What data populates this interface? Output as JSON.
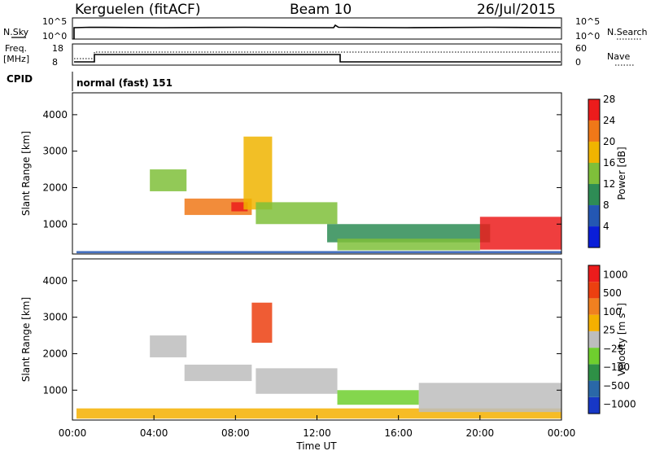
{
  "header": {
    "station": "Kerguelen (fitACF)",
    "beam": "Beam 10",
    "date": "26/Jul/2015"
  },
  "top_panels": {
    "nsky_label": "N.Sky",
    "nsky_ticks": [
      "10^5",
      "10^0"
    ],
    "nsearch_label": "N.Search",
    "nsearch_ticks": [
      "10^5",
      "10^0"
    ],
    "freq_label_1": "Freq.",
    "freq_label_2": "[MHz]",
    "freq_ticks": [
      "18",
      "8"
    ],
    "nave_label": "Nave",
    "nave_ticks": [
      "60",
      "0"
    ],
    "cpid_label": "CPID",
    "cpid_text": "normal (fast) 151"
  },
  "chart_data": [
    {
      "type": "heatmap",
      "name": "power",
      "ylabel": "Slant Range [km]",
      "xlabel": "",
      "y_ticks": [
        "1000",
        "2000",
        "3000",
        "4000"
      ],
      "ylim": [
        180,
        4600
      ],
      "colorbar_label": "Power [dB]",
      "colorbar_ticks": [
        "4",
        "8",
        "12",
        "16",
        "20",
        "24",
        "28"
      ],
      "colors": [
        "#0a1ed8",
        "#2457b3",
        "#2e8c55",
        "#7fbf3a",
        "#f0b400",
        "#f07818",
        "#ec1c1c"
      ],
      "regions": [
        {
          "t": [
            0.2,
            24
          ],
          "r": [
            200,
            260
          ],
          "level": 1
        },
        {
          "t": [
            3.8,
            5.6
          ],
          "r": [
            1900,
            2500
          ],
          "level": 3
        },
        {
          "t": [
            5.5,
            8.8
          ],
          "r": [
            1250,
            1700
          ],
          "level": 5
        },
        {
          "t": [
            7.8,
            8.6
          ],
          "r": [
            1350,
            1600
          ],
          "level": 6
        },
        {
          "t": [
            8.4,
            9.8
          ],
          "r": [
            1400,
            3400
          ],
          "level": 4
        },
        {
          "t": [
            9.0,
            13.0
          ],
          "r": [
            1000,
            1600
          ],
          "level": 3
        },
        {
          "t": [
            12.5,
            20.5
          ],
          "r": [
            500,
            1000
          ],
          "level": 2
        },
        {
          "t": [
            20.0,
            24
          ],
          "r": [
            300,
            1200
          ],
          "level": 6
        },
        {
          "t": [
            13.0,
            20.0
          ],
          "r": [
            280,
            600
          ],
          "level": 3
        }
      ]
    },
    {
      "type": "heatmap",
      "name": "velocity",
      "ylabel": "Slant Range [km]",
      "xlabel": "Time UT",
      "x_ticks": [
        "00:00",
        "04:00",
        "08:00",
        "12:00",
        "16:00",
        "20:00",
        "00:00"
      ],
      "xlim": [
        0,
        24
      ],
      "y_ticks": [
        "1000",
        "2000",
        "3000",
        "4000"
      ],
      "ylim": [
        180,
        4600
      ],
      "colorbar_label": "Velocity [m s",
      "colorbar_sup": "-1",
      "colorbar_ticks": [
        "1000",
        "500",
        "100",
        "25",
        "−25",
        "−100",
        "−500",
        "−1000"
      ],
      "colors": [
        "#1737c6",
        "#2a68a8",
        "#2e9046",
        "#6fcf2e",
        "#bdbdbd",
        "#f4b000",
        "#f08020",
        "#ec4010",
        "#ec1c1c"
      ],
      "regions": [
        {
          "t": [
            0.2,
            24
          ],
          "r": [
            220,
            500
          ],
          "level": 5
        },
        {
          "t": [
            3.8,
            5.6
          ],
          "r": [
            1900,
            2500
          ],
          "level": 4
        },
        {
          "t": [
            5.5,
            8.8
          ],
          "r": [
            1250,
            1700
          ],
          "level": 4
        },
        {
          "t": [
            8.8,
            9.8
          ],
          "r": [
            2300,
            3400
          ],
          "level": 7
        },
        {
          "t": [
            9.0,
            13.0
          ],
          "r": [
            900,
            1600
          ],
          "level": 4
        },
        {
          "t": [
            13.0,
            17.0
          ],
          "r": [
            600,
            1000
          ],
          "level": 3
        },
        {
          "t": [
            17.0,
            24
          ],
          "r": [
            400,
            1200
          ],
          "level": 4
        }
      ]
    }
  ]
}
